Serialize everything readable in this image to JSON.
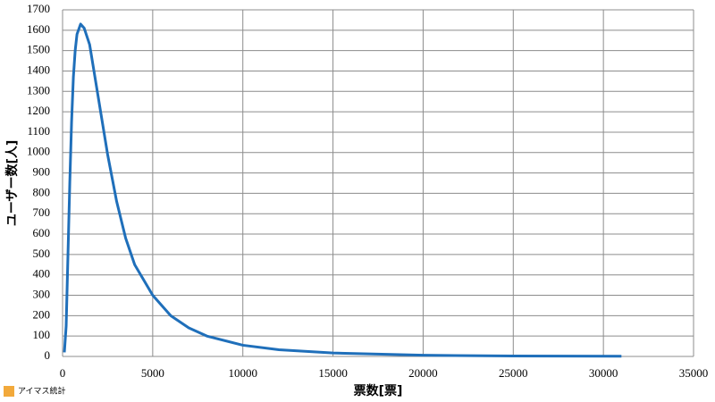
{
  "chart_data": {
    "type": "line",
    "x_label": "票数[票]",
    "y_label": "ユーザー数[人]",
    "x": [
      100,
      200,
      300,
      400,
      500,
      600,
      700,
      800,
      1000,
      1200,
      1500,
      2000,
      2500,
      3000,
      3500,
      4000,
      5000,
      6000,
      7000,
      8000,
      10000,
      12000,
      15000,
      20000,
      25000,
      31000
    ],
    "series": [
      {
        "color": "#1f6fba",
        "values": [
          20,
          150,
          500,
          850,
          1150,
          1370,
          1500,
          1580,
          1630,
          1610,
          1530,
          1260,
          990,
          760,
          580,
          450,
          300,
          200,
          140,
          100,
          55,
          33,
          17,
          6,
          2,
          1
        ]
      }
    ],
    "xlim": [
      0,
      35000
    ],
    "xticks": [
      0,
      5000,
      10000,
      15000,
      20000,
      25000,
      30000,
      35000
    ],
    "ylim": [
      0,
      1700
    ],
    "yticks": [
      0,
      100,
      200,
      300,
      400,
      500,
      600,
      700,
      800,
      900,
      1000,
      1100,
      1200,
      1300,
      1400,
      1500,
      1600,
      1700
    ],
    "grid": true,
    "logo": "アイマス統計"
  }
}
